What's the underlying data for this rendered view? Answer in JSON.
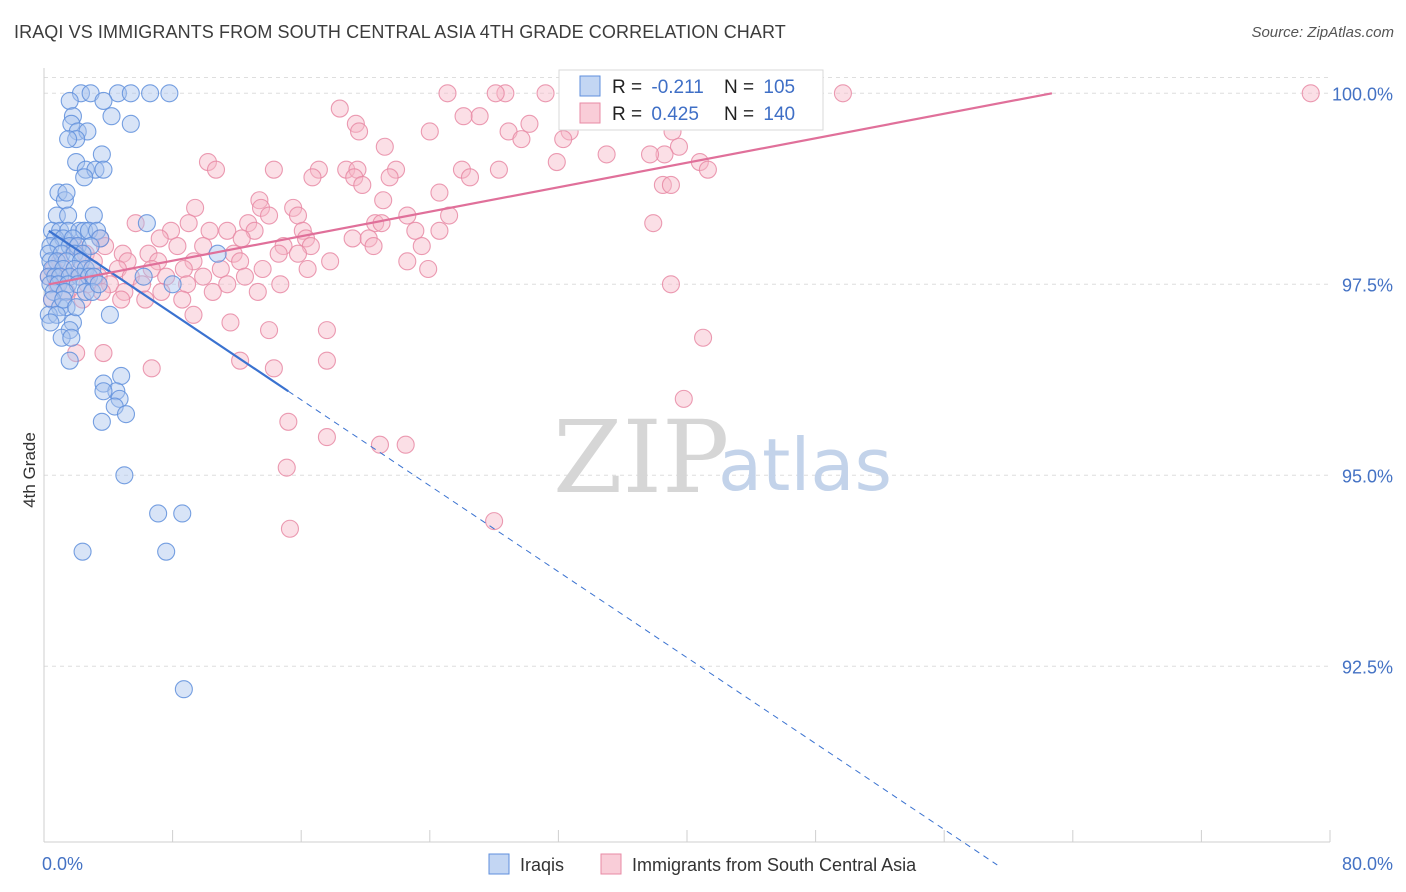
{
  "header": {
    "title": "IRAQI VS IMMIGRANTS FROM SOUTH CENTRAL ASIA 4TH GRADE CORRELATION CHART",
    "source": "Source: ZipAtlas.com"
  },
  "watermark": {
    "zip": "ZIP",
    "atlas": "atlas"
  },
  "colors": {
    "iraqis_fill": "#a9c4ee",
    "iraqis_stroke": "#5f8fdc",
    "iraqis_line": "#3a72d0",
    "sca_fill": "#f6b8c8",
    "sca_stroke": "#e88aa5",
    "sca_line": "#e0709a",
    "grid": "#dedede",
    "axis_label": "#4472c4"
  },
  "legend": {
    "rows": [
      {
        "r_label": "R = ",
        "r_value": "-0.211",
        "n_label": "N = ",
        "n_value": "105"
      },
      {
        "r_label": "R = ",
        "r_value": "0.425",
        "n_label": "N = ",
        "n_value": "140"
      }
    ]
  },
  "chart_data": {
    "type": "scatter",
    "title": "IRAQI VS IMMIGRANTS FROM SOUTH CENTRAL ASIA 4TH GRADE CORRELATION CHART",
    "xlabel": "",
    "ylabel": "4th Grade",
    "xlim": [
      0,
      80
    ],
    "ylim": [
      90.2,
      100.2
    ],
    "x_tick_labels": [
      {
        "value": 0,
        "label": "0.0%"
      },
      {
        "value": 80,
        "label": "80.0%"
      }
    ],
    "x_minor_ticks": [
      0,
      8,
      16,
      24,
      32,
      40,
      48,
      56,
      64,
      72,
      80
    ],
    "y_ticks": [
      {
        "value": 100.0,
        "label": "100.0%"
      },
      {
        "value": 97.5,
        "label": "97.5%"
      },
      {
        "value": 95.0,
        "label": "95.0%"
      },
      {
        "value": 92.5,
        "label": "92.5%"
      }
    ],
    "grid": true,
    "series": [
      {
        "name": "Iraqis",
        "r": -0.211,
        "n": 105,
        "trend": {
          "solid": [
            [
              0.3,
              98.2
            ],
            [
              15.2,
              96.1
            ]
          ],
          "dashed": [
            [
              15.2,
              96.1
            ],
            [
              59.3,
              89.9
            ]
          ]
        },
        "points": [
          [
            2.3,
            100.0
          ],
          [
            2.9,
            100.0
          ],
          [
            4.6,
            100.0
          ],
          [
            5.4,
            100.0
          ],
          [
            6.6,
            100.0
          ],
          [
            7.8,
            100.0
          ],
          [
            1.6,
            99.9
          ],
          [
            3.7,
            99.9
          ],
          [
            1.8,
            99.7
          ],
          [
            4.2,
            99.7
          ],
          [
            1.7,
            99.6
          ],
          [
            2.1,
            99.5
          ],
          [
            2.7,
            99.5
          ],
          [
            5.4,
            99.6
          ],
          [
            2.0,
            99.4
          ],
          [
            1.5,
            99.4
          ],
          [
            3.6,
            99.2
          ],
          [
            2.0,
            99.1
          ],
          [
            2.6,
            99.0
          ],
          [
            3.2,
            99.0
          ],
          [
            3.7,
            99.0
          ],
          [
            2.5,
            98.9
          ],
          [
            0.9,
            98.7
          ],
          [
            1.3,
            98.6
          ],
          [
            1.4,
            98.7
          ],
          [
            0.8,
            98.4
          ],
          [
            1.5,
            98.4
          ],
          [
            3.1,
            98.4
          ],
          [
            6.4,
            98.3
          ],
          [
            0.5,
            98.2
          ],
          [
            1.0,
            98.2
          ],
          [
            1.5,
            98.2
          ],
          [
            2.2,
            98.2
          ],
          [
            2.5,
            98.2
          ],
          [
            2.8,
            98.2
          ],
          [
            3.3,
            98.2
          ],
          [
            0.7,
            98.1
          ],
          [
            1.2,
            98.1
          ],
          [
            1.8,
            98.1
          ],
          [
            3.5,
            98.1
          ],
          [
            0.4,
            98.0
          ],
          [
            0.9,
            98.0
          ],
          [
            1.6,
            98.0
          ],
          [
            2.1,
            98.0
          ],
          [
            2.9,
            98.0
          ],
          [
            0.3,
            97.9
          ],
          [
            1.1,
            97.9
          ],
          [
            1.9,
            97.9
          ],
          [
            2.4,
            97.9
          ],
          [
            10.8,
            97.9
          ],
          [
            0.4,
            97.8
          ],
          [
            0.8,
            97.8
          ],
          [
            1.4,
            97.8
          ],
          [
            2.3,
            97.8
          ],
          [
            0.5,
            97.7
          ],
          [
            1.2,
            97.7
          ],
          [
            1.9,
            97.7
          ],
          [
            2.6,
            97.7
          ],
          [
            3.0,
            97.7
          ],
          [
            0.3,
            97.6
          ],
          [
            0.7,
            97.6
          ],
          [
            1.0,
            97.6
          ],
          [
            1.6,
            97.6
          ],
          [
            2.2,
            97.6
          ],
          [
            2.8,
            97.6
          ],
          [
            3.1,
            97.6
          ],
          [
            6.2,
            97.6
          ],
          [
            0.4,
            97.5
          ],
          [
            0.9,
            97.5
          ],
          [
            1.5,
            97.5
          ],
          [
            2.1,
            97.5
          ],
          [
            0.6,
            97.4
          ],
          [
            1.3,
            97.4
          ],
          [
            2.6,
            97.4
          ],
          [
            3.0,
            97.4
          ],
          [
            8.0,
            97.5
          ],
          [
            0.5,
            97.3
          ],
          [
            1.0,
            97.2
          ],
          [
            1.4,
            97.2
          ],
          [
            0.3,
            97.1
          ],
          [
            0.8,
            97.1
          ],
          [
            1.8,
            97.0
          ],
          [
            0.4,
            97.0
          ],
          [
            1.6,
            96.9
          ],
          [
            1.1,
            96.8
          ],
          [
            1.7,
            96.8
          ],
          [
            4.1,
            97.1
          ],
          [
            1.6,
            96.5
          ],
          [
            4.8,
            96.3
          ],
          [
            3.7,
            96.2
          ],
          [
            4.5,
            96.1
          ],
          [
            3.7,
            96.1
          ],
          [
            4.7,
            96.0
          ],
          [
            4.4,
            95.9
          ],
          [
            3.6,
            95.7
          ],
          [
            5.1,
            95.8
          ],
          [
            5.0,
            95.0
          ],
          [
            7.1,
            94.5
          ],
          [
            8.6,
            94.5
          ],
          [
            2.4,
            94.0
          ],
          [
            7.6,
            94.0
          ],
          [
            8.7,
            92.2
          ],
          [
            1.2,
            97.3
          ],
          [
            2.0,
            97.2
          ],
          [
            3.4,
            97.5
          ]
        ]
      },
      {
        "name": "Immigrants from South Central Asia",
        "r": 0.425,
        "n": 140,
        "trend": {
          "solid": [
            [
              0.3,
              97.5
            ],
            [
              62.7,
              100.0
            ]
          ]
        },
        "points": [
          [
            25.1,
            100.0
          ],
          [
            28.7,
            100.0
          ],
          [
            28.1,
            100.0
          ],
          [
            31.2,
            100.0
          ],
          [
            35.0,
            100.0
          ],
          [
            36.9,
            100.0
          ],
          [
            41.6,
            100.0
          ],
          [
            49.7,
            100.0
          ],
          [
            78.8,
            100.0
          ],
          [
            18.4,
            99.8
          ],
          [
            27.1,
            99.7
          ],
          [
            26.1,
            99.7
          ],
          [
            30.2,
            99.6
          ],
          [
            32.7,
            99.5
          ],
          [
            28.9,
            99.5
          ],
          [
            19.4,
            99.6
          ],
          [
            19.6,
            99.5
          ],
          [
            24.0,
            99.5
          ],
          [
            29.7,
            99.4
          ],
          [
            32.3,
            99.4
          ],
          [
            21.2,
            99.3
          ],
          [
            39.1,
            99.5
          ],
          [
            39.5,
            99.3
          ],
          [
            38.6,
            99.2
          ],
          [
            40.8,
            99.1
          ],
          [
            35.0,
            99.2
          ],
          [
            31.9,
            99.1
          ],
          [
            10.2,
            99.1
          ],
          [
            10.7,
            99.0
          ],
          [
            14.3,
            99.0
          ],
          [
            17.1,
            99.0
          ],
          [
            18.8,
            99.0
          ],
          [
            19.5,
            99.0
          ],
          [
            21.9,
            99.0
          ],
          [
            26.0,
            99.0
          ],
          [
            28.3,
            99.0
          ],
          [
            41.3,
            99.0
          ],
          [
            37.7,
            99.2
          ],
          [
            16.7,
            98.9
          ],
          [
            19.3,
            98.9
          ],
          [
            21.5,
            98.9
          ],
          [
            26.5,
            98.9
          ],
          [
            19.8,
            98.8
          ],
          [
            38.5,
            98.8
          ],
          [
            39.0,
            98.8
          ],
          [
            13.4,
            98.6
          ],
          [
            15.5,
            98.5
          ],
          [
            21.1,
            98.6
          ],
          [
            24.6,
            98.7
          ],
          [
            9.4,
            98.5
          ],
          [
            13.5,
            98.5
          ],
          [
            14.0,
            98.4
          ],
          [
            15.8,
            98.4
          ],
          [
            22.6,
            98.4
          ],
          [
            25.2,
            98.4
          ],
          [
            5.7,
            98.3
          ],
          [
            9.0,
            98.3
          ],
          [
            10.3,
            98.2
          ],
          [
            12.7,
            98.3
          ],
          [
            20.6,
            98.3
          ],
          [
            21.0,
            98.3
          ],
          [
            37.9,
            98.3
          ],
          [
            7.9,
            98.2
          ],
          [
            11.4,
            98.2
          ],
          [
            13.1,
            98.2
          ],
          [
            16.1,
            98.2
          ],
          [
            23.1,
            98.2
          ],
          [
            24.6,
            98.2
          ],
          [
            3.5,
            98.1
          ],
          [
            7.2,
            98.1
          ],
          [
            12.3,
            98.1
          ],
          [
            16.3,
            98.1
          ],
          [
            19.2,
            98.1
          ],
          [
            20.2,
            98.1
          ],
          [
            1.9,
            98.0
          ],
          [
            3.8,
            98.0
          ],
          [
            8.3,
            98.0
          ],
          [
            9.9,
            98.0
          ],
          [
            14.9,
            98.0
          ],
          [
            16.6,
            98.0
          ],
          [
            20.5,
            98.0
          ],
          [
            23.5,
            98.0
          ],
          [
            2.6,
            97.9
          ],
          [
            4.9,
            97.9
          ],
          [
            6.5,
            97.9
          ],
          [
            11.8,
            97.9
          ],
          [
            14.6,
            97.9
          ],
          [
            15.8,
            97.9
          ],
          [
            1.0,
            97.8
          ],
          [
            3.1,
            97.8
          ],
          [
            5.2,
            97.8
          ],
          [
            7.1,
            97.8
          ],
          [
            9.3,
            97.8
          ],
          [
            12.2,
            97.8
          ],
          [
            17.8,
            97.8
          ],
          [
            22.6,
            97.8
          ],
          [
            0.6,
            97.7
          ],
          [
            2.2,
            97.7
          ],
          [
            4.6,
            97.7
          ],
          [
            6.7,
            97.7
          ],
          [
            8.7,
            97.7
          ],
          [
            11.0,
            97.7
          ],
          [
            13.6,
            97.7
          ],
          [
            16.4,
            97.7
          ],
          [
            23.9,
            97.7
          ],
          [
            0.3,
            97.6
          ],
          [
            1.6,
            97.6
          ],
          [
            3.4,
            97.6
          ],
          [
            5.4,
            97.6
          ],
          [
            7.6,
            97.6
          ],
          [
            9.9,
            97.6
          ],
          [
            12.5,
            97.6
          ],
          [
            0.8,
            97.5
          ],
          [
            2.7,
            97.5
          ],
          [
            4.1,
            97.5
          ],
          [
            6.1,
            97.5
          ],
          [
            8.9,
            97.5
          ],
          [
            11.4,
            97.5
          ],
          [
            14.7,
            97.5
          ],
          [
            1.4,
            97.4
          ],
          [
            3.6,
            97.4
          ],
          [
            5.0,
            97.4
          ],
          [
            7.3,
            97.4
          ],
          [
            10.5,
            97.4
          ],
          [
            13.3,
            97.4
          ],
          [
            0.5,
            97.3
          ],
          [
            2.4,
            97.3
          ],
          [
            4.8,
            97.3
          ],
          [
            6.3,
            97.3
          ],
          [
            8.6,
            97.3
          ],
          [
            9.3,
            97.1
          ],
          [
            11.6,
            97.0
          ],
          [
            14.0,
            96.9
          ],
          [
            17.6,
            96.9
          ],
          [
            2.0,
            96.6
          ],
          [
            3.7,
            96.6
          ],
          [
            12.2,
            96.5
          ],
          [
            17.6,
            96.5
          ],
          [
            6.7,
            96.4
          ],
          [
            14.3,
            96.4
          ],
          [
            15.2,
            95.7
          ],
          [
            17.6,
            95.5
          ],
          [
            20.9,
            95.4
          ],
          [
            22.5,
            95.4
          ],
          [
            15.1,
            95.1
          ],
          [
            15.3,
            94.3
          ],
          [
            28.0,
            94.4
          ],
          [
            39.0,
            97.5
          ],
          [
            41.0,
            96.8
          ],
          [
            39.8,
            96.0
          ]
        ]
      }
    ],
    "legend_entries": [
      "Iraqis",
      "Immigrants from South Central Asia"
    ]
  }
}
